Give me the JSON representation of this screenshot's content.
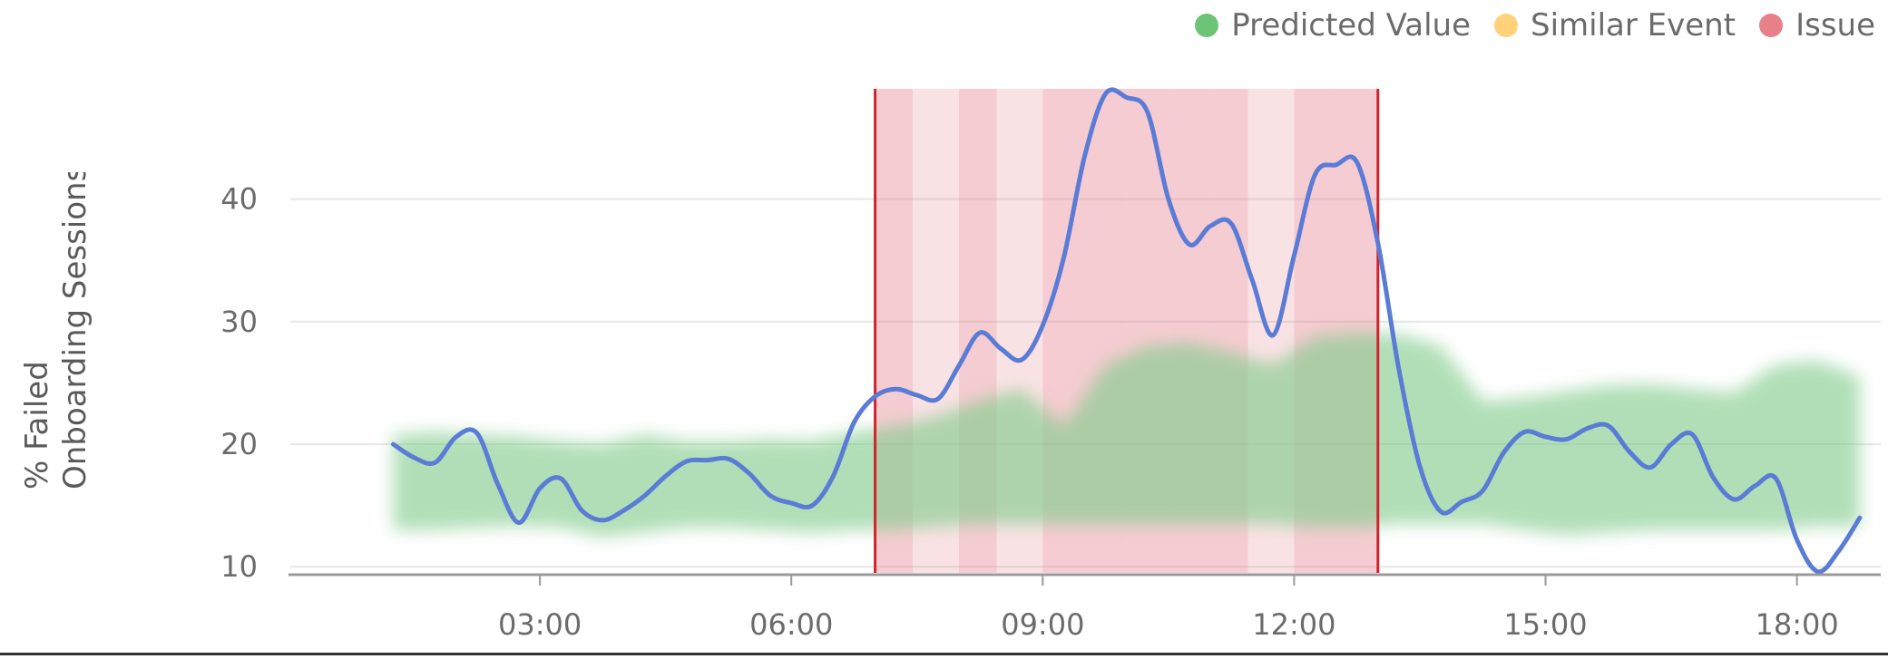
{
  "colors": {
    "predicted": "#7fcb8a",
    "similar": "#ffd083",
    "issue": "#e57a85",
    "line": "#5a7bd6",
    "issue_border": "#d1222d",
    "grid": "#e6e6e6",
    "axis": "#9a9a9a"
  },
  "legend": [
    {
      "label": "Predicted Value",
      "color": "#6cc477"
    },
    {
      "label": "Similar Event",
      "color": "#ffd27a"
    },
    {
      "label": "Issue",
      "color": "#e88089"
    }
  ],
  "chart_data": {
    "type": "line",
    "title": "",
    "xlabel": "",
    "ylabel_lines": [
      "% Failed",
      "Onboarding Sessions"
    ],
    "xlim_hours": [
      0.0,
      19.0
    ],
    "ylim": [
      9.5,
      49
    ],
    "x_ticks": [
      {
        "value": 3,
        "label": "03:00"
      },
      {
        "value": 6,
        "label": "06:00"
      },
      {
        "value": 9,
        "label": "09:00"
      },
      {
        "value": 12,
        "label": "12:00"
      },
      {
        "value": 15,
        "label": "15:00"
      },
      {
        "value": 18,
        "label": "18:00"
      }
    ],
    "y_ticks": [
      10,
      20,
      30,
      40
    ],
    "series": [
      {
        "name": "% Failed Onboarding Sessions",
        "x": [
          1.25,
          1.5,
          1.75,
          2.0,
          2.25,
          2.5,
          2.75,
          3.0,
          3.25,
          3.5,
          3.75,
          4.0,
          4.25,
          4.5,
          4.75,
          5.0,
          5.25,
          5.5,
          5.75,
          6.0,
          6.25,
          6.5,
          6.75,
          7.0,
          7.25,
          7.5,
          7.75,
          8.0,
          8.25,
          8.5,
          8.75,
          9.0,
          9.25,
          9.5,
          9.75,
          10.0,
          10.25,
          10.5,
          10.75,
          11.0,
          11.25,
          11.5,
          11.75,
          12.0,
          12.25,
          12.5,
          12.75,
          13.0,
          13.25,
          13.5,
          13.75,
          14.0,
          14.25,
          14.5,
          14.75,
          15.0,
          15.25,
          15.5,
          15.75,
          16.0,
          16.25,
          16.5,
          16.75,
          17.0,
          17.25,
          17.5,
          17.75,
          18.0,
          18.25,
          18.5,
          18.75
        ],
        "values": [
          20.0,
          18.9,
          18.5,
          20.6,
          20.9,
          16.7,
          13.6,
          16.4,
          17.2,
          14.6,
          13.8,
          14.6,
          15.8,
          17.4,
          18.6,
          18.7,
          18.8,
          17.6,
          15.8,
          15.2,
          15.0,
          17.4,
          21.8,
          23.9,
          24.5,
          24.0,
          23.7,
          26.4,
          29.1,
          27.8,
          26.9,
          29.7,
          35.2,
          43.5,
          48.6,
          48.3,
          47.1,
          40.0,
          36.3,
          37.8,
          38.0,
          33.4,
          28.9,
          35.4,
          42.0,
          42.8,
          43.0,
          36.4,
          26.1,
          18.2,
          14.5,
          15.3,
          16.2,
          19.3,
          21.0,
          20.6,
          20.4,
          21.3,
          21.5,
          19.4,
          18.1,
          20.0,
          20.8,
          17.3,
          15.5,
          16.6,
          17.2,
          12.2,
          9.6,
          11.3,
          14.0
        ]
      }
    ],
    "predicted_band": {
      "name": "Predicted Value",
      "x": [
        1.25,
        1.75,
        2.25,
        2.75,
        3.25,
        3.75,
        4.25,
        4.75,
        5.25,
        5.75,
        6.25,
        6.75,
        7.25,
        7.75,
        8.25,
        8.75,
        9.25,
        9.75,
        10.25,
        10.75,
        11.25,
        11.75,
        12.25,
        12.75,
        13.25,
        13.75,
        14.25,
        14.75,
        15.25,
        15.75,
        16.25,
        16.75,
        17.25,
        17.75,
        18.25,
        18.75
      ],
      "low": [
        13.0,
        13.0,
        13.2,
        13.3,
        13.2,
        12.4,
        12.8,
        13.2,
        13.2,
        13.0,
        12.8,
        13.0,
        13.0,
        13.3,
        13.5,
        13.5,
        13.5,
        13.5,
        13.5,
        13.5,
        13.5,
        13.5,
        13.2,
        13.2,
        13.5,
        13.5,
        13.5,
        13.0,
        12.6,
        12.8,
        13.0,
        13.0,
        13.0,
        13.0,
        13.3,
        13.3
      ],
      "high": [
        20.8,
        21.0,
        20.8,
        20.6,
        20.2,
        20.0,
        20.8,
        20.2,
        20.2,
        20.4,
        20.3,
        21.0,
        21.5,
        22.3,
        23.6,
        24.5,
        21.5,
        26.5,
        28.0,
        28.3,
        27.5,
        26.5,
        28.8,
        29.1,
        29.0,
        28.0,
        23.5,
        23.8,
        24.3,
        24.8,
        24.9,
        24.5,
        24.2,
        26.5,
        26.8,
        25.5
      ]
    },
    "issue_window": {
      "label": "Issue",
      "start": 7.0,
      "end": 13.0
    },
    "issue_stripes": [
      {
        "start": 7.0,
        "end": 7.45,
        "level": "dark"
      },
      {
        "start": 7.45,
        "end": 8.0,
        "level": "light"
      },
      {
        "start": 8.0,
        "end": 8.45,
        "level": "dark"
      },
      {
        "start": 8.45,
        "end": 9.0,
        "level": "light"
      },
      {
        "start": 9.0,
        "end": 9.5,
        "level": "dark"
      },
      {
        "start": 9.5,
        "end": 10.0,
        "level": "dark"
      },
      {
        "start": 10.0,
        "end": 10.5,
        "level": "dark"
      },
      {
        "start": 10.5,
        "end": 11.0,
        "level": "dark"
      },
      {
        "start": 11.0,
        "end": 11.45,
        "level": "dark"
      },
      {
        "start": 11.45,
        "end": 12.0,
        "level": "light"
      },
      {
        "start": 12.0,
        "end": 12.45,
        "level": "dark"
      },
      {
        "start": 12.45,
        "end": 13.0,
        "level": "dark"
      }
    ],
    "legend_position": "top-right",
    "grid": true
  }
}
